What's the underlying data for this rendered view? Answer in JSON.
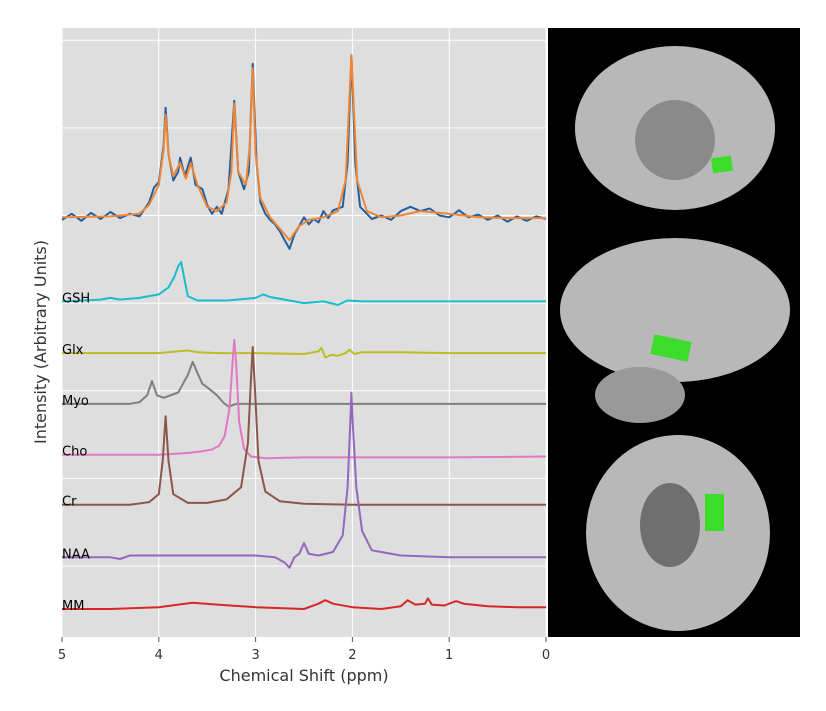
{
  "chart_data": {
    "type": "line",
    "xlabel": "Chemical Shift (ppm)",
    "ylabel": "Intensity (Arbitrary Units)",
    "xlim": [
      5,
      0
    ],
    "xticks": [
      5,
      4,
      3,
      2,
      1,
      0
    ],
    "ylim": [
      -0.81,
      6.14
    ],
    "ygrid": [
      0,
      1,
      2,
      3,
      4,
      5,
      6
    ],
    "grid": true,
    "series": [
      {
        "color": "#1f5fa0",
        "x": [
          5,
          4.9,
          4.8,
          4.7,
          4.6,
          4.5,
          4.4,
          4.3,
          4.2,
          4.1,
          4.05,
          4.0,
          3.95,
          3.93,
          3.9,
          3.85,
          3.8,
          3.78,
          3.73,
          3.67,
          3.62,
          3.55,
          3.5,
          3.45,
          3.4,
          3.35,
          3.28,
          3.22,
          3.18,
          3.12,
          3.07,
          3.03,
          2.99,
          2.95,
          2.9,
          2.85,
          2.8,
          2.75,
          2.7,
          2.65,
          2.6,
          2.55,
          2.5,
          2.45,
          2.4,
          2.35,
          2.3,
          2.25,
          2.2,
          2.1,
          2.05,
          2.01,
          1.97,
          1.92,
          1.85,
          1.8,
          1.7,
          1.6,
          1.5,
          1.4,
          1.3,
          1.2,
          1.1,
          1.0,
          0.9,
          0.8,
          0.7,
          0.6,
          0.5,
          0.4,
          0.3,
          0.2,
          0.1,
          0
        ],
        "values": [
          3.95,
          4.02,
          3.94,
          4.03,
          3.96,
          4.04,
          3.97,
          4.02,
          3.99,
          4.15,
          4.32,
          4.38,
          4.8,
          5.23,
          4.7,
          4.4,
          4.5,
          4.66,
          4.45,
          4.66,
          4.35,
          4.3,
          4.12,
          4.02,
          4.1,
          4.02,
          4.3,
          5.31,
          4.5,
          4.3,
          4.5,
          5.73,
          4.6,
          4.15,
          4.02,
          3.95,
          3.9,
          3.82,
          3.72,
          3.62,
          3.78,
          3.88,
          3.98,
          3.9,
          3.96,
          3.92,
          4.05,
          3.97,
          4.06,
          4.1,
          4.6,
          5.83,
          4.6,
          4.1,
          4.02,
          3.96,
          4.0,
          3.95,
          4.05,
          4.1,
          4.05,
          4.08,
          4.0,
          3.98,
          4.06,
          3.98,
          4.01,
          3.95,
          4.0,
          3.93,
          3.99,
          3.94,
          3.99,
          3.96
        ]
      },
      {
        "color": "#ef8636",
        "x": [
          5,
          4.5,
          4.2,
          4.1,
          4.0,
          3.95,
          3.93,
          3.9,
          3.85,
          3.78,
          3.72,
          3.67,
          3.6,
          3.5,
          3.4,
          3.3,
          3.25,
          3.22,
          3.18,
          3.1,
          3.06,
          3.03,
          3.0,
          2.95,
          2.85,
          2.75,
          2.65,
          2.55,
          2.45,
          2.3,
          2.15,
          2.07,
          2.01,
          1.95,
          1.85,
          1.7,
          1.5,
          1.3,
          1.0,
          0.7,
          0.4,
          0
        ],
        "values": [
          3.98,
          3.99,
          4.02,
          4.12,
          4.35,
          4.75,
          5.15,
          4.7,
          4.45,
          4.6,
          4.42,
          4.6,
          4.35,
          4.1,
          4.05,
          4.15,
          4.5,
          5.28,
          4.5,
          4.35,
          4.8,
          5.68,
          4.7,
          4.2,
          3.98,
          3.85,
          3.72,
          3.88,
          3.95,
          3.98,
          4.05,
          4.4,
          5.83,
          4.4,
          4.05,
          3.98,
          4.0,
          4.05,
          4.02,
          3.98,
          3.97,
          3.97
        ]
      },
      {
        "name": "GSH",
        "color": "#17becf",
        "x": [
          5,
          4.6,
          4.5,
          4.4,
          4.2,
          4.0,
          3.9,
          3.84,
          3.8,
          3.77,
          3.74,
          3.7,
          3.6,
          3.3,
          3.0,
          2.92,
          2.85,
          2.6,
          2.5,
          2.3,
          2.15,
          2.05,
          1.9,
          1.0,
          0
        ],
        "values": [
          3.02,
          3.04,
          3.06,
          3.04,
          3.06,
          3.1,
          3.18,
          3.3,
          3.42,
          3.47,
          3.3,
          3.08,
          3.03,
          3.03,
          3.06,
          3.1,
          3.07,
          3.02,
          3.0,
          3.02,
          2.98,
          3.03,
          3.02,
          3.02,
          3.02
        ]
      },
      {
        "name": "Glx",
        "color": "#bcbd22",
        "x": [
          5,
          4.0,
          3.8,
          3.7,
          3.6,
          3.4,
          3.0,
          2.5,
          2.35,
          2.32,
          2.28,
          2.22,
          2.15,
          2.07,
          2.03,
          1.98,
          1.9,
          1.5,
          1.0,
          0
        ],
        "values": [
          2.43,
          2.43,
          2.45,
          2.46,
          2.44,
          2.43,
          2.43,
          2.42,
          2.45,
          2.49,
          2.38,
          2.41,
          2.4,
          2.43,
          2.47,
          2.42,
          2.44,
          2.44,
          2.43,
          2.43
        ]
      },
      {
        "name": "Myo",
        "color": "#7f7f7f",
        "x": [
          5,
          4.3,
          4.2,
          4.12,
          4.07,
          4.02,
          3.95,
          3.8,
          3.7,
          3.65,
          3.6,
          3.55,
          3.5,
          3.4,
          3.33,
          3.28,
          3.2,
          3.0,
          2.0,
          1.0,
          0
        ],
        "values": [
          1.85,
          1.85,
          1.87,
          1.95,
          2.11,
          1.95,
          1.92,
          1.98,
          2.18,
          2.33,
          2.2,
          2.08,
          2.04,
          1.95,
          1.86,
          1.82,
          1.85,
          1.85,
          1.85,
          1.85,
          1.85
        ]
      },
      {
        "name": "Cho",
        "color": "#e377c2",
        "x": [
          5,
          4.0,
          3.7,
          3.55,
          3.45,
          3.38,
          3.32,
          3.27,
          3.24,
          3.22,
          3.2,
          3.17,
          3.12,
          3.05,
          2.9,
          2.5,
          2.0,
          1.0,
          0
        ],
        "values": [
          1.27,
          1.27,
          1.29,
          1.31,
          1.33,
          1.37,
          1.48,
          1.8,
          2.3,
          2.58,
          2.3,
          1.65,
          1.34,
          1.25,
          1.23,
          1.24,
          1.24,
          1.24,
          1.25
        ]
      },
      {
        "name": "Cr",
        "color": "#8c564b",
        "x": [
          5,
          4.3,
          4.1,
          4.0,
          3.96,
          3.93,
          3.9,
          3.85,
          3.7,
          3.5,
          3.3,
          3.15,
          3.08,
          3.05,
          3.03,
          3.01,
          2.97,
          2.9,
          2.75,
          2.5,
          2.0,
          1.0,
          0
        ],
        "values": [
          0.7,
          0.7,
          0.73,
          0.82,
          1.2,
          1.71,
          1.2,
          0.82,
          0.72,
          0.72,
          0.76,
          0.9,
          1.4,
          2.1,
          2.5,
          2.1,
          1.2,
          0.85,
          0.74,
          0.71,
          0.7,
          0.7,
          0.7
        ]
      },
      {
        "name": "NAA",
        "color": "#9467bd",
        "x": [
          5,
          4.5,
          4.4,
          4.3,
          4.0,
          3.5,
          3.0,
          2.8,
          2.7,
          2.65,
          2.6,
          2.55,
          2.5,
          2.45,
          2.35,
          2.2,
          2.1,
          2.05,
          2.02,
          2.01,
          2.0,
          1.96,
          1.9,
          1.8,
          1.5,
          1.0,
          0
        ],
        "values": [
          0.1,
          0.1,
          0.08,
          0.12,
          0.12,
          0.12,
          0.12,
          0.1,
          0.04,
          -0.02,
          0.1,
          0.14,
          0.26,
          0.14,
          0.12,
          0.16,
          0.35,
          0.9,
          1.7,
          1.98,
          1.7,
          0.9,
          0.4,
          0.18,
          0.12,
          0.1,
          0.1
        ]
      },
      {
        "name": "MM",
        "color": "#d62728",
        "x": [
          5,
          4.5,
          4.0,
          3.8,
          3.65,
          3.4,
          3.0,
          2.5,
          2.35,
          2.28,
          2.2,
          2.0,
          1.7,
          1.5,
          1.43,
          1.35,
          1.25,
          1.22,
          1.18,
          1.05,
          0.93,
          0.85,
          0.6,
          0.3,
          0
        ],
        "values": [
          -0.49,
          -0.49,
          -0.47,
          -0.44,
          -0.42,
          -0.44,
          -0.47,
          -0.49,
          -0.43,
          -0.39,
          -0.43,
          -0.47,
          -0.49,
          -0.46,
          -0.39,
          -0.44,
          -0.43,
          -0.37,
          -0.44,
          -0.45,
          -0.4,
          -0.43,
          -0.46,
          -0.47,
          -0.47
        ]
      }
    ]
  }
}
